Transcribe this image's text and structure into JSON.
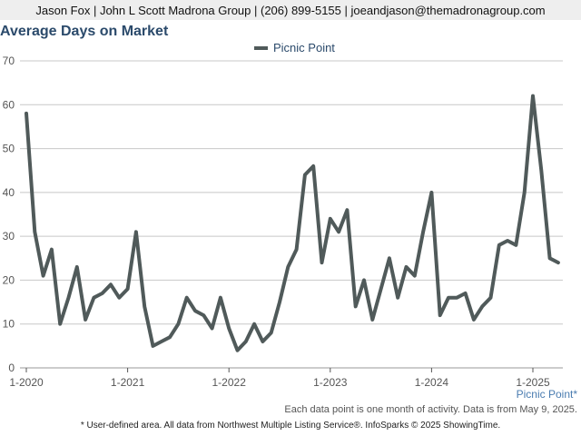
{
  "header": {
    "contact": "Jason Fox | John L Scott Madrona Group | (206) 899-5155 | joeandjason@themadronagroup.com"
  },
  "chart_data": {
    "type": "line",
    "title": "Average Days on Market",
    "xlabel": "",
    "ylabel": "",
    "ylim": [
      0,
      70
    ],
    "yticks": [
      0,
      10,
      20,
      30,
      40,
      50,
      60,
      70
    ],
    "xtick_labels": [
      "1-2020",
      "1-2021",
      "1-2022",
      "1-2023",
      "1-2024",
      "1-2025"
    ],
    "x_start": "1-2020",
    "x_end": "4-2025",
    "grid": true,
    "legend_position": "top-center",
    "series": [
      {
        "name": "Picnic Point",
        "color": "#505a5a",
        "values": [
          58,
          31,
          21,
          27,
          10,
          16,
          23,
          11,
          16,
          17,
          19,
          16,
          18,
          31,
          14,
          5,
          6,
          7,
          10,
          16,
          13,
          12,
          9,
          16,
          9,
          4,
          6,
          10,
          6,
          8,
          15,
          23,
          27,
          44,
          46,
          24,
          34,
          31,
          36,
          14,
          20,
          11,
          18,
          25,
          16,
          23,
          21,
          31,
          40,
          12,
          16,
          16,
          17,
          11,
          14,
          16,
          28,
          29,
          28,
          40,
          62,
          45,
          25,
          24
        ]
      }
    ]
  },
  "area_label": "Picnic Point*",
  "note": "Each data point is one month of activity. Data is from May 9, 2025.",
  "footer": "* User-defined area. All data from Northwest Multiple Listing Service®. InfoSparks © 2025 ShowingTime."
}
